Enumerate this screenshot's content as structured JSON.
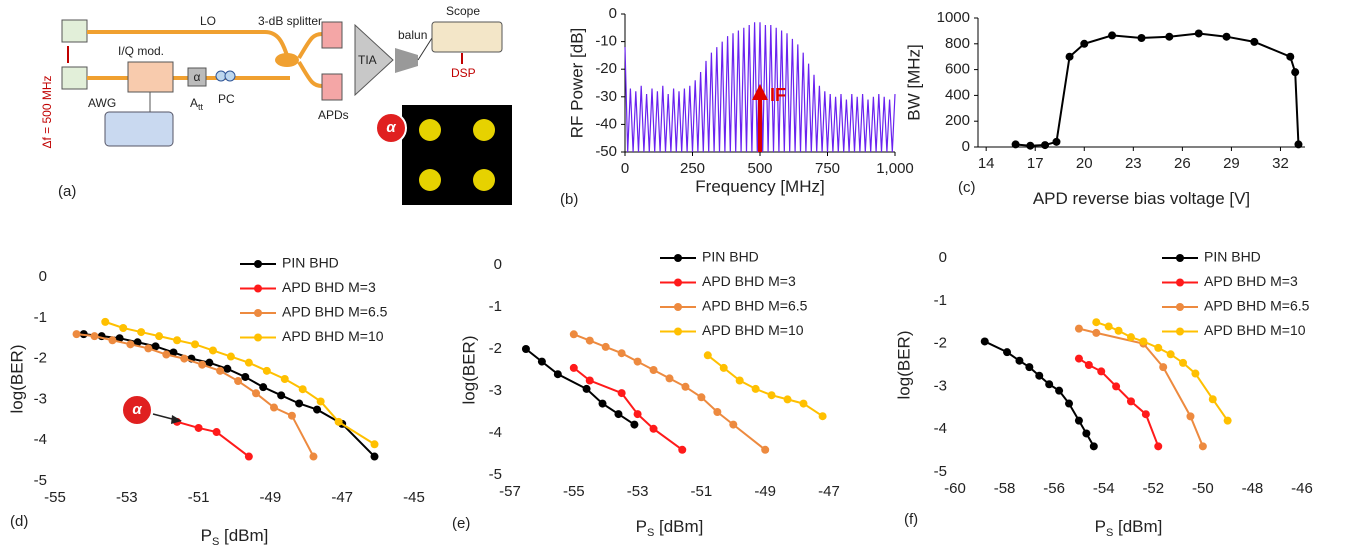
{
  "diagram": {
    "panel_label": "(a)",
    "lo": "LO",
    "splitter": "3-dB splitter",
    "balun": "balun",
    "scope": "Scope",
    "iq": "I/Q mod.",
    "delta_f": "Δf = 500 MHz",
    "awg": "AWG",
    "alpha": "α",
    "att": [
      "A",
      "tt"
    ],
    "pc": "PC",
    "tia": "TIA",
    "apds": "APDs",
    "dsp": "DSP"
  },
  "chart_data": [
    {
      "type": "line",
      "panel_label": "(b)",
      "xlabel": [
        "Frequency [MHz]"
      ],
      "ylabel": "RF Power [dB]",
      "annotation": "IF",
      "markers": false,
      "axes": true,
      "grid": false,
      "color": "#6a22f0",
      "xlim": [
        0,
        1000
      ],
      "ylim": [
        -50,
        0
      ],
      "xticks": [
        0,
        250,
        500,
        750,
        {
          "value": 1000,
          "label": "1,000"
        }
      ],
      "yticks": [
        0,
        -10,
        -20,
        -30,
        -40,
        -50
      ],
      "x": [
        0,
        10,
        20,
        30,
        40,
        50,
        60,
        70,
        80,
        90,
        100,
        110,
        120,
        130,
        140,
        150,
        160,
        170,
        180,
        190,
        200,
        210,
        220,
        230,
        240,
        250,
        260,
        270,
        280,
        290,
        300,
        310,
        320,
        330,
        340,
        350,
        360,
        370,
        380,
        390,
        400,
        410,
        420,
        430,
        440,
        450,
        460,
        470,
        480,
        490,
        500,
        510,
        520,
        530,
        540,
        550,
        560,
        570,
        580,
        590,
        600,
        610,
        620,
        630,
        640,
        650,
        660,
        670,
        680,
        690,
        700,
        710,
        720,
        730,
        740,
        750,
        760,
        770,
        780,
        790,
        800,
        810,
        820,
        830,
        840,
        850,
        860,
        870,
        880,
        890,
        900,
        910,
        920,
        930,
        940,
        950,
        960,
        970,
        980,
        990,
        1000
      ],
      "values": [
        -12,
        -50,
        -27,
        -50,
        -28,
        -50,
        -26,
        -50,
        -29,
        -50,
        -27,
        -50,
        -28,
        -50,
        -26,
        -50,
        -29,
        -50,
        -27,
        -50,
        -28,
        -50,
        -27,
        -50,
        -26,
        -50,
        -24,
        -50,
        -21,
        -50,
        -17,
        -50,
        -14,
        -50,
        -12,
        -50,
        -10,
        -50,
        -8,
        -50,
        -7,
        -50,
        -6,
        -50,
        -5,
        -50,
        -4,
        -50,
        -3,
        -50,
        -3,
        -50,
        -4,
        -50,
        -4,
        -50,
        -5,
        -50,
        -6,
        -50,
        -7,
        -50,
        -9,
        -50,
        -11,
        -50,
        -14,
        -50,
        -18,
        -50,
        -22,
        -50,
        -26,
        -50,
        -28,
        -50,
        -29,
        -50,
        -30,
        -50,
        -29,
        -50,
        -31,
        -50,
        -29,
        -50,
        -30,
        -50,
        -29,
        -50,
        -31,
        -50,
        -30,
        -50,
        -29,
        -50,
        -30,
        -50,
        -31,
        -50,
        -29
      ]
    },
    {
      "type": "line",
      "panel_label": "(c)",
      "xlabel": [
        "APD reverse bias voltage [V]"
      ],
      "ylabel": "BW [MHz]",
      "markers": true,
      "axes": true,
      "grid": false,
      "color": "#000000",
      "xlim": [
        13.5,
        33.5
      ],
      "ylim": [
        0,
        1000
      ],
      "xticks": [
        14,
        17,
        20,
        23,
        26,
        29,
        32
      ],
      "yticks": [
        0,
        200,
        400,
        600,
        800,
        1000
      ],
      "x": [
        15.8,
        16.7,
        17.6,
        18.3,
        19.1,
        20,
        21.7,
        23.5,
        25.2,
        27,
        28.7,
        30.4,
        32.6,
        32.9,
        33.1
      ],
      "values": [
        20,
        10,
        15,
        40,
        700,
        800,
        865,
        845,
        855,
        880,
        855,
        815,
        700,
        580,
        20
      ]
    },
    {
      "type": "line",
      "panel_label": "(d)",
      "xlabel": [
        "P",
        "S",
        " [dBm]"
      ],
      "ylabel": "log(BER)",
      "annotation": "α",
      "markers": true,
      "axes": false,
      "grid": false,
      "xlim": [
        -55,
        -45
      ],
      "ylim": [
        -5,
        0
      ],
      "xticks": [
        -55,
        -53,
        -51,
        -49,
        -47,
        -45
      ],
      "yticks": [
        0,
        -1,
        -2,
        -3,
        -4,
        -5
      ],
      "series": [
        {
          "name": "PIN BHD",
          "color": "#000000",
          "x": [
            -54.2,
            -53.7,
            -53.2,
            -52.7,
            -52.2,
            -51.7,
            -51.2,
            -50.7,
            -50.2,
            -49.7,
            -49.2,
            -48.7,
            -48.2,
            -47.7,
            -47.0,
            -46.1
          ],
          "values": [
            -1.4,
            -1.45,
            -1.5,
            -1.6,
            -1.7,
            -1.85,
            -2.0,
            -2.1,
            -2.25,
            -2.45,
            -2.7,
            -2.9,
            -3.1,
            -3.25,
            -3.6,
            -4.4
          ]
        },
        {
          "name": "APD BHD M=3",
          "color": "#ff1a1a",
          "x": [
            -51.6,
            -51.0,
            -50.5,
            -49.6
          ],
          "values": [
            -3.55,
            -3.7,
            -3.8,
            -4.4
          ]
        },
        {
          "name": "APD BHD M=6.5",
          "color": "#ed8a3f",
          "x": [
            -54.4,
            -53.9,
            -53.4,
            -52.9,
            -52.4,
            -51.9,
            -51.4,
            -50.9,
            -50.4,
            -49.9,
            -49.4,
            -48.9,
            -48.4,
            -47.8
          ],
          "values": [
            -1.4,
            -1.45,
            -1.55,
            -1.65,
            -1.75,
            -1.9,
            -2.0,
            -2.15,
            -2.3,
            -2.55,
            -2.85,
            -3.2,
            -3.4,
            -4.4
          ]
        },
        {
          "name": "APD BHD M=10",
          "color": "#ffc000",
          "x": [
            -53.6,
            -53.1,
            -52.6,
            -52.1,
            -51.6,
            -51.1,
            -50.6,
            -50.1,
            -49.6,
            -49.1,
            -48.6,
            -48.1,
            -47.6,
            -47.1,
            -46.1
          ],
          "values": [
            -1.1,
            -1.25,
            -1.35,
            -1.45,
            -1.55,
            -1.65,
            -1.8,
            -1.95,
            -2.1,
            -2.3,
            -2.5,
            -2.75,
            -3.05,
            -3.55,
            -4.1
          ]
        }
      ]
    },
    {
      "type": "line",
      "panel_label": "(e)",
      "xlabel": [
        "P",
        "S",
        " [dBm]"
      ],
      "ylabel": "log(BER)",
      "markers": true,
      "axes": false,
      "grid": false,
      "xlim": [
        -57,
        -47
      ],
      "ylim": [
        -5,
        0
      ],
      "xticks": [
        -57,
        -55,
        -53,
        -51,
        -49,
        -47
      ],
      "yticks": [
        0,
        -1,
        -2,
        -3,
        -4,
        -5
      ],
      "series": [
        {
          "name": "PIN BHD",
          "color": "#000000",
          "x": [
            -56.5,
            -56.0,
            -55.5,
            -54.6,
            -54.1,
            -53.6,
            -53.1
          ],
          "values": [
            -2.0,
            -2.3,
            -2.6,
            -2.95,
            -3.3,
            -3.55,
            -3.8
          ]
        },
        {
          "name": "APD BHD M=3",
          "color": "#ff1a1a",
          "x": [
            -55.0,
            -54.5,
            -53.5,
            -53.0,
            -52.5,
            -51.6
          ],
          "values": [
            -2.45,
            -2.75,
            -3.05,
            -3.55,
            -3.9,
            -4.4
          ]
        },
        {
          "name": "APD BHD M=6.5",
          "color": "#ed8a3f",
          "x": [
            -55.0,
            -54.5,
            -54.0,
            -53.5,
            -53.0,
            -52.5,
            -52.0,
            -51.5,
            -51.0,
            -50.5,
            -50.0,
            -49.0
          ],
          "values": [
            -1.65,
            -1.8,
            -1.95,
            -2.1,
            -2.3,
            -2.5,
            -2.7,
            -2.9,
            -3.15,
            -3.5,
            -3.8,
            -4.4
          ]
        },
        {
          "name": "APD BHD M=10",
          "color": "#ffc000",
          "x": [
            -50.8,
            -50.3,
            -49.8,
            -49.3,
            -48.8,
            -48.3,
            -47.8,
            -47.2
          ],
          "values": [
            -2.15,
            -2.45,
            -2.75,
            -2.95,
            -3.1,
            -3.2,
            -3.3,
            -3.6
          ]
        }
      ]
    },
    {
      "type": "line",
      "panel_label": "(f)",
      "xlabel": [
        "P",
        "S",
        " [dBm]"
      ],
      "ylabel": "log(BER)",
      "markers": true,
      "axes": false,
      "grid": false,
      "xlim": [
        -60,
        -46
      ],
      "ylim": [
        -5,
        0
      ],
      "xticks": [
        -60,
        -58,
        -56,
        -54,
        -52,
        -50,
        -48,
        -46
      ],
      "yticks": [
        0,
        -1,
        -2,
        -3,
        -4,
        -5
      ],
      "series": [
        {
          "name": "PIN BHD",
          "color": "#000000",
          "x": [
            -58.8,
            -57.9,
            -57.4,
            -57.0,
            -56.6,
            -56.2,
            -55.8,
            -55.4,
            -55.0,
            -54.7,
            -54.4
          ],
          "values": [
            -1.95,
            -2.2,
            -2.4,
            -2.55,
            -2.75,
            -2.95,
            -3.1,
            -3.4,
            -3.8,
            -4.1,
            -4.4
          ]
        },
        {
          "name": "APD BHD M=3",
          "color": "#ff1a1a",
          "x": [
            -55.0,
            -54.6,
            -54.1,
            -53.5,
            -52.9,
            -52.3,
            -51.8
          ],
          "values": [
            -2.35,
            -2.5,
            -2.65,
            -3.0,
            -3.35,
            -3.65,
            -4.4
          ]
        },
        {
          "name": "APD BHD M=6.5",
          "color": "#ed8a3f",
          "x": [
            -55.0,
            -54.3,
            -52.4,
            -51.6,
            -50.5,
            -50.0
          ],
          "values": [
            -1.65,
            -1.75,
            -2.0,
            -2.55,
            -3.7,
            -4.4
          ]
        },
        {
          "name": "APD BHD M=10",
          "color": "#ffc000",
          "x": [
            -54.3,
            -53.8,
            -53.4,
            -52.9,
            -52.4,
            -51.8,
            -51.3,
            -50.8,
            -50.3,
            -49.6,
            -49.0
          ],
          "values": [
            -1.5,
            -1.6,
            -1.7,
            -1.85,
            -1.95,
            -2.1,
            -2.25,
            -2.45,
            -2.7,
            -3.3,
            -3.8
          ]
        }
      ]
    }
  ]
}
